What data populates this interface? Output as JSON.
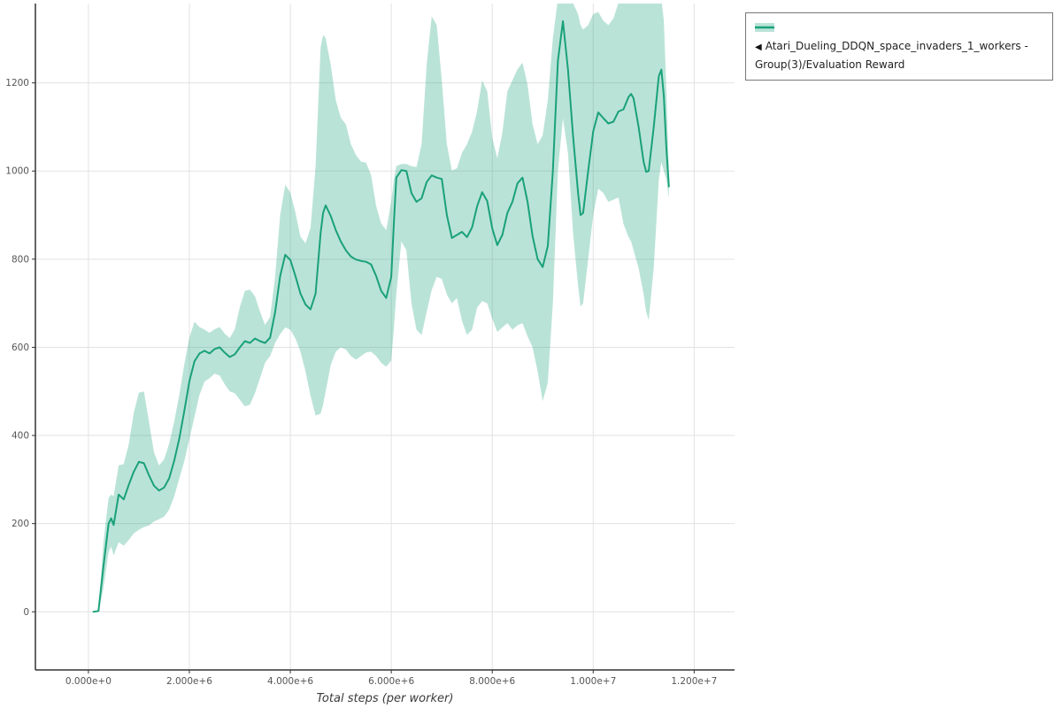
{
  "legend": {
    "marker": "◀",
    "label": "Atari_Dueling_DDQN_space_invaders_1_workers - Group(3)/Evaluation Reward"
  },
  "colors": {
    "line": "#1aa179",
    "band": "#1aa179",
    "band_opacity": 0.3,
    "grid": "#e2e2e2",
    "axis": "#333333",
    "tick_text": "#555555"
  },
  "chart_data": {
    "type": "line",
    "title": "",
    "xlabel": "Total steps (per worker)",
    "ylabel": "",
    "grid": true,
    "legend_position": "top-right-outside",
    "xlim": [
      -1050000,
      12800000
    ],
    "ylim": [
      -132,
      1380
    ],
    "x_ticks": [
      {
        "value": 0,
        "label": "0.000e+0"
      },
      {
        "value": 2000000,
        "label": "2.000e+6"
      },
      {
        "value": 4000000,
        "label": "4.000e+6"
      },
      {
        "value": 6000000,
        "label": "6.000e+6"
      },
      {
        "value": 8000000,
        "label": "8.000e+6"
      },
      {
        "value": 10000000,
        "label": "1.000e+7"
      },
      {
        "value": 12000000,
        "label": "1.200e+7"
      }
    ],
    "y_ticks": [
      0,
      200,
      400,
      600,
      800,
      1000,
      1200
    ],
    "series": [
      {
        "name": "Atari_Dueling_DDQN_space_invaders_1_workers - Group(3)/Evaluation Reward",
        "point_format": [
          "x_steps",
          "mean",
          "band_lower",
          "band_upper"
        ],
        "points": [
          [
            100000,
            0,
            0,
            0
          ],
          [
            200000,
            2,
            0,
            6
          ],
          [
            300000,
            105,
            55,
            160
          ],
          [
            400000,
            200,
            135,
            258
          ],
          [
            450000,
            212,
            148,
            266
          ],
          [
            500000,
            197,
            128,
            262
          ],
          [
            600000,
            266,
            158,
            332
          ],
          [
            700000,
            255,
            150,
            335
          ],
          [
            800000,
            288,
            163,
            380
          ],
          [
            900000,
            318,
            178,
            452
          ],
          [
            1000000,
            340,
            186,
            497
          ],
          [
            1100000,
            337,
            192,
            500
          ],
          [
            1200000,
            310,
            196,
            432
          ],
          [
            1300000,
            286,
            205,
            362
          ],
          [
            1400000,
            275,
            210,
            332
          ],
          [
            1500000,
            282,
            216,
            346
          ],
          [
            1600000,
            303,
            232,
            382
          ],
          [
            1700000,
            343,
            262,
            432
          ],
          [
            1800000,
            393,
            302,
            492
          ],
          [
            1900000,
            456,
            342,
            562
          ],
          [
            2000000,
            523,
            392,
            622
          ],
          [
            2100000,
            568,
            442,
            658
          ],
          [
            2200000,
            586,
            492,
            646
          ],
          [
            2300000,
            592,
            522,
            640
          ],
          [
            2400000,
            586,
            530,
            633
          ],
          [
            2500000,
            596,
            540,
            641
          ],
          [
            2600000,
            600,
            536,
            646
          ],
          [
            2700000,
            588,
            516,
            631
          ],
          [
            2800000,
            578,
            500,
            621
          ],
          [
            2900000,
            584,
            496,
            641
          ],
          [
            3000000,
            600,
            481,
            691
          ],
          [
            3100000,
            614,
            466,
            728
          ],
          [
            3200000,
            610,
            470,
            731
          ],
          [
            3300000,
            620,
            496,
            716
          ],
          [
            3400000,
            614,
            530,
            681
          ],
          [
            3500000,
            610,
            565,
            651
          ],
          [
            3600000,
            622,
            580,
            669
          ],
          [
            3700000,
            680,
            610,
            761
          ],
          [
            3800000,
            762,
            630,
            901
          ],
          [
            3900000,
            810,
            645,
            969
          ],
          [
            4000000,
            798,
            640,
            951
          ],
          [
            4100000,
            762,
            620,
            906
          ],
          [
            4200000,
            722,
            590,
            851
          ],
          [
            4300000,
            697,
            545,
            836
          ],
          [
            4400000,
            686,
            490,
            871
          ],
          [
            4500000,
            722,
            445,
            1011
          ],
          [
            4600000,
            860,
            450,
            1281
          ],
          [
            4650000,
            905,
            470,
            1309
          ],
          [
            4700000,
            922,
            500,
            1301
          ],
          [
            4800000,
            898,
            560,
            1241
          ],
          [
            4900000,
            866,
            590,
            1161
          ],
          [
            5000000,
            840,
            600,
            1121
          ],
          [
            5100000,
            820,
            595,
            1106
          ],
          [
            5200000,
            806,
            580,
            1061
          ],
          [
            5300000,
            799,
            572,
            1036
          ],
          [
            5400000,
            796,
            580,
            1021
          ],
          [
            5500000,
            794,
            588,
            1019
          ],
          [
            5600000,
            788,
            590,
            991
          ],
          [
            5700000,
            762,
            580,
            921
          ],
          [
            5800000,
            728,
            565,
            881
          ],
          [
            5900000,
            712,
            556,
            866
          ],
          [
            6000000,
            760,
            570,
            931
          ],
          [
            6050000,
            880,
            640,
            981
          ],
          [
            6100000,
            985,
            720,
            1011
          ],
          [
            6200000,
            1002,
            840,
            1016
          ],
          [
            6300000,
            1000,
            820,
            1016
          ],
          [
            6400000,
            950,
            700,
            1011
          ],
          [
            6500000,
            930,
            640,
            1009
          ],
          [
            6600000,
            938,
            628,
            1061
          ],
          [
            6700000,
            975,
            680,
            1241
          ],
          [
            6800000,
            990,
            730,
            1351
          ],
          [
            6900000,
            985,
            760,
            1331
          ],
          [
            7000000,
            982,
            755,
            1206
          ],
          [
            7100000,
            900,
            720,
            1061
          ],
          [
            7200000,
            848,
            700,
            1001
          ],
          [
            7300000,
            855,
            712,
            1006
          ],
          [
            7400000,
            862,
            660,
            1041
          ],
          [
            7500000,
            850,
            628,
            1061
          ],
          [
            7600000,
            872,
            640,
            1089
          ],
          [
            7700000,
            920,
            690,
            1136
          ],
          [
            7800000,
            952,
            705,
            1206
          ],
          [
            7900000,
            932,
            700,
            1181
          ],
          [
            8000000,
            870,
            665,
            1076
          ],
          [
            8100000,
            832,
            635,
            1029
          ],
          [
            8200000,
            855,
            645,
            1086
          ],
          [
            8300000,
            905,
            655,
            1181
          ],
          [
            8400000,
            930,
            640,
            1206
          ],
          [
            8500000,
            972,
            650,
            1231
          ],
          [
            8600000,
            985,
            655,
            1246
          ],
          [
            8700000,
            930,
            625,
            1196
          ],
          [
            8800000,
            852,
            600,
            1106
          ],
          [
            8900000,
            800,
            545,
            1061
          ],
          [
            9000000,
            782,
            478,
            1081
          ],
          [
            9100000,
            830,
            520,
            1161
          ],
          [
            9200000,
            1000,
            700,
            1301
          ],
          [
            9300000,
            1250,
            1000,
            1391
          ],
          [
            9400000,
            1340,
            1120,
            1401
          ],
          [
            9500000,
            1230,
            1040,
            1401
          ],
          [
            9600000,
            1080,
            860,
            1381
          ],
          [
            9700000,
            950,
            740,
            1356
          ],
          [
            9750000,
            900,
            692,
            1331
          ],
          [
            9800000,
            905,
            700,
            1321
          ],
          [
            9900000,
            1000,
            800,
            1331
          ],
          [
            10000000,
            1090,
            900,
            1356
          ],
          [
            10100000,
            1133,
            960,
            1361
          ],
          [
            10200000,
            1120,
            950,
            1341
          ],
          [
            10300000,
            1108,
            930,
            1331
          ],
          [
            10400000,
            1112,
            935,
            1346
          ],
          [
            10500000,
            1135,
            940,
            1381
          ],
          [
            10600000,
            1140,
            880,
            1396
          ],
          [
            10700000,
            1168,
            850,
            1401
          ],
          [
            10750000,
            1175,
            840,
            1401
          ],
          [
            10800000,
            1165,
            820,
            1401
          ],
          [
            10900000,
            1100,
            780,
            1396
          ],
          [
            11000000,
            1020,
            720,
            1391
          ],
          [
            11050000,
            998,
            680,
            1386
          ],
          [
            11100000,
            1000,
            662,
            1381
          ],
          [
            11200000,
            1100,
            780,
            1391
          ],
          [
            11300000,
            1215,
            980,
            1396
          ],
          [
            11350000,
            1230,
            1020,
            1391
          ],
          [
            11400000,
            1170,
            1000,
            1341
          ],
          [
            11450000,
            1050,
            980,
            1181
          ],
          [
            11500000,
            965,
            940,
            1001
          ]
        ]
      }
    ]
  }
}
